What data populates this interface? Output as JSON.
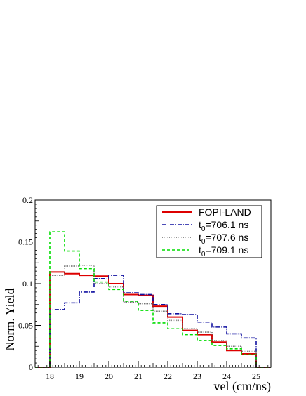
{
  "chart_data": {
    "type": "line",
    "xlabel": "vel (cm/ns)",
    "ylabel": "Norm. Yield",
    "xlim": [
      17.5,
      25.5
    ],
    "ylim": [
      0,
      0.2
    ],
    "xticks": [
      "18",
      "19",
      "20",
      "21",
      "22",
      "23",
      "24",
      "25"
    ],
    "yticks": [
      "0",
      "0.05",
      "0.1",
      "0.15",
      "0.2"
    ],
    "bin_edges": [
      18.0,
      18.5,
      19.0,
      19.5,
      20.0,
      20.5,
      21.0,
      21.5,
      22.0,
      22.5,
      23.0,
      23.5,
      24.0,
      24.5,
      25.0
    ],
    "legend_position": "top-right",
    "grid": false,
    "series": [
      {
        "name": "FOPI-LAND",
        "legend_parts": [
          "FOPI-LAND",
          "",
          ""
        ],
        "color": "#dd0000",
        "style": "solid",
        "values": [
          0.114,
          0.112,
          0.11,
          0.109,
          0.1,
          0.087,
          0.086,
          0.073,
          0.06,
          0.044,
          0.039,
          0.03,
          0.02,
          0.016
        ]
      },
      {
        "name": "t0=706.1 ns",
        "legend_parts": [
          "t",
          "0",
          "=706.1 ns"
        ],
        "color": "#1010a0",
        "style": "dashdot",
        "values": [
          0.069,
          0.077,
          0.09,
          0.106,
          0.11,
          0.089,
          0.087,
          0.075,
          0.064,
          0.063,
          0.054,
          0.048,
          0.04,
          0.035
        ]
      },
      {
        "name": "t0=707.6 ns",
        "legend_parts": [
          "t",
          "0",
          "=707.6 ns"
        ],
        "color": "#666666",
        "style": "dotted",
        "values": [
          0.11,
          0.121,
          0.122,
          0.1,
          0.096,
          0.078,
          0.076,
          0.067,
          0.056,
          0.046,
          0.042,
          0.032,
          0.025,
          0.019
        ]
      },
      {
        "name": "t0=709.1 ns",
        "legend_parts": [
          "t",
          "0",
          "=709.1 ns"
        ],
        "color": "#00dd00",
        "style": "dashed",
        "values": [
          0.162,
          0.139,
          0.118,
          0.102,
          0.093,
          0.079,
          0.068,
          0.053,
          0.046,
          0.039,
          0.032,
          0.026,
          0.022,
          0.015
        ]
      }
    ]
  }
}
